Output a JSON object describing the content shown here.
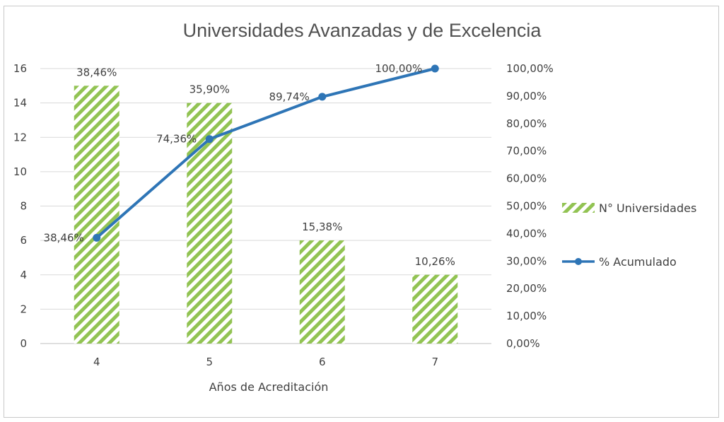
{
  "chart_data": {
    "type": "bar",
    "title": "Universidades Avanzadas y de Excelencia",
    "xlabel": "Años de Acreditación",
    "categories": [
      "4",
      "5",
      "6",
      "7"
    ],
    "series": [
      {
        "name": "N° Universidades",
        "type": "bar",
        "axis": "left",
        "values": [
          15,
          14,
          6,
          4
        ],
        "data_labels": [
          "38,46%",
          "35,90%",
          "15,38%",
          "10,26%"
        ],
        "color": "#92c353"
      },
      {
        "name": "% Acumulado",
        "type": "line",
        "axis": "right",
        "values": [
          38.46,
          74.36,
          89.74,
          100.0
        ],
        "data_labels": [
          "38,46%",
          "74,36%",
          "89,74%",
          "100,00%"
        ],
        "color": "#2e75b6"
      }
    ],
    "ylim_left": [
      0,
      16
    ],
    "yticks_left": [
      "0",
      "2",
      "4",
      "6",
      "8",
      "10",
      "12",
      "14",
      "16"
    ],
    "ylim_right": [
      0,
      100
    ],
    "yticks_right": [
      "0,00%",
      "10,00%",
      "20,00%",
      "30,00%",
      "40,00%",
      "50,00%",
      "60,00%",
      "70,00%",
      "80,00%",
      "90,00%",
      "100,00%"
    ],
    "grid": true,
    "legend_position": "right"
  }
}
